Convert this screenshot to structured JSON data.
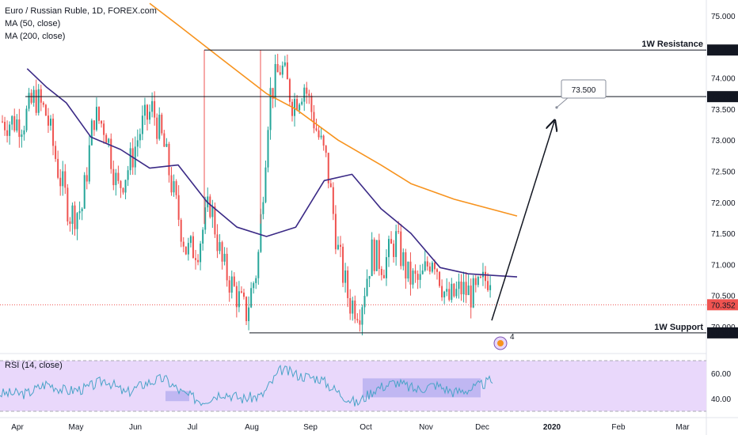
{
  "legend": {
    "title": "Euro / Russian Ruble, 1D, FOREX.com",
    "ma50": "MA (50, close)",
    "ma200": "MA (200, close)",
    "rsi": "RSI (14, close)"
  },
  "colors": {
    "up": "#26a69a",
    "down": "#ef5350",
    "ma50": "#3b2a86",
    "ma200": "#f7931e",
    "rsi": "#4aa3c8",
    "rsi_band": "#e9d8fb",
    "rsi_box": "#b8b2f0",
    "price_tag": "#ef5350",
    "level_tag": "#131722"
  },
  "chart_data": [
    {
      "type": "candlestick",
      "title": "Euro / Russian Ruble, 1D, FOREX.com",
      "ylim": [
        69.85,
        75.15
      ],
      "x_ticks": [
        "Apr",
        "May",
        "Jun",
        "Jul",
        "Aug",
        "Sep",
        "Oct",
        "Nov",
        "Dec",
        "2020",
        "Feb",
        "Mar"
      ],
      "y_ticks": [
        75.0,
        74.5,
        74.0,
        73.5,
        73.0,
        72.5,
        72.0,
        71.5,
        71.0,
        70.5,
        70.0
      ],
      "y_tick_labels": [
        "75.000",
        "74.500",
        "74.000",
        "73.500",
        "73.000",
        "72.500",
        "72.000",
        "71.500",
        "71.000",
        "70.500",
        "70.000"
      ],
      "price_series": {
        "anchors": [
          [
            "Apr",
            73.3
          ],
          [
            "Apr",
            73.7
          ],
          [
            "Apr",
            73.4
          ],
          [
            "Apr",
            72.5
          ],
          [
            "Apr",
            71.8
          ],
          [
            "May",
            71.9
          ],
          [
            "May",
            73.4
          ],
          [
            "May",
            73.2
          ],
          [
            "May",
            72.2
          ],
          [
            "May",
            72.6
          ],
          [
            "Jun",
            73.2
          ],
          [
            "Jun",
            73.5
          ],
          [
            "Jun",
            72.9
          ],
          [
            "Jun",
            72.0
          ],
          [
            "Jun",
            71.2
          ],
          [
            "Jul",
            71.3
          ],
          [
            "Jul",
            72.0
          ],
          [
            "Jul",
            71.0
          ],
          [
            "Jul",
            70.6
          ],
          [
            "Jul",
            70.2
          ],
          [
            "Aug",
            71.0
          ],
          [
            "Aug",
            73.7
          ],
          [
            "Aug",
            74.2
          ],
          [
            "Aug",
            73.6
          ],
          [
            "Aug",
            73.9
          ],
          [
            "Sep",
            73.2
          ],
          [
            "Sep",
            72.6
          ],
          [
            "Sep",
            71.2
          ],
          [
            "Sep",
            70.4
          ],
          [
            "Sep",
            70.3
          ],
          [
            "Oct",
            71.2
          ],
          [
            "Oct",
            71.0
          ],
          [
            "Oct",
            71.4
          ],
          [
            "Oct",
            70.8
          ],
          [
            "Oct",
            70.7
          ],
          [
            "Nov",
            71.2
          ],
          [
            "Nov",
            70.4
          ],
          [
            "Nov",
            70.6
          ],
          [
            "Nov",
            70.5
          ],
          [
            "Dec",
            71.1
          ],
          [
            "Dec",
            70.35
          ]
        ]
      },
      "ma50": [
        [
          "Apr",
          74.15
        ],
        [
          "Apr",
          73.85
        ],
        [
          "Apr",
          73.6
        ],
        [
          "May",
          73.05
        ],
        [
          "May",
          72.85
        ],
        [
          "Jun",
          72.55
        ],
        [
          "Jun",
          72.6
        ],
        [
          "Jul",
          72.0
        ],
        [
          "Jul",
          71.6
        ],
        [
          "Aug",
          71.45
        ],
        [
          "Aug",
          71.6
        ],
        [
          "Sep",
          72.35
        ],
        [
          "Sep",
          72.45
        ],
        [
          "Oct",
          71.9
        ],
        [
          "Oct",
          71.5
        ],
        [
          "Nov",
          70.95
        ],
        [
          "Nov",
          70.85
        ],
        [
          "Dec",
          70.8
        ]
      ],
      "ma200": [
        [
          "Jun",
          75.2
        ],
        [
          "Jun",
          74.85
        ],
        [
          "Jul",
          74.3
        ],
        [
          "Aug",
          73.75
        ],
        [
          "Aug",
          73.5
        ],
        [
          "Sep",
          73.0
        ],
        [
          "Oct",
          72.6
        ],
        [
          "Oct",
          72.3
        ],
        [
          "Nov",
          72.05
        ],
        [
          "Dec",
          71.78
        ]
      ],
      "levels": [
        {
          "name": "1W Resistance",
          "value": 74.45,
          "label": "74.450"
        },
        {
          "name": "1W Support",
          "value": 69.9,
          "label": "69.900"
        }
      ],
      "horizontal_line": {
        "value": 73.7,
        "label": "73.700"
      },
      "last_price": {
        "value": 70.352,
        "label": "70.352"
      },
      "projection": {
        "target": 73.5,
        "label": "73.500"
      },
      "event_badge": "4"
    },
    {
      "type": "line",
      "title": "RSI (14, close)",
      "ylim": [
        30,
        70
      ],
      "y_ticks": [
        60,
        40
      ],
      "y_tick_labels": [
        "60.00",
        "40.00"
      ],
      "band": [
        30,
        70
      ],
      "values_by_month": [
        [
          "Apr",
          44
        ],
        [
          "Apr",
          52
        ],
        [
          "Apr",
          46
        ],
        [
          "May",
          48
        ],
        [
          "May",
          55
        ],
        [
          "May",
          44
        ],
        [
          "Jun",
          52
        ],
        [
          "Jun",
          56
        ],
        [
          "Jun",
          44
        ],
        [
          "Jul",
          38
        ],
        [
          "Jul",
          45
        ],
        [
          "Jul",
          40
        ],
        [
          "Aug",
          42
        ],
        [
          "Aug",
          63
        ],
        [
          "Aug",
          58
        ],
        [
          "Sep",
          56
        ],
        [
          "Sep",
          45
        ],
        [
          "Sep",
          36
        ],
        [
          "Oct",
          48
        ],
        [
          "Oct",
          53
        ],
        [
          "Oct",
          47
        ],
        [
          "Nov",
          51
        ],
        [
          "Nov",
          45
        ],
        [
          "Nov",
          48
        ],
        [
          "Dec",
          57
        ],
        [
          "Dec",
          42
        ]
      ],
      "range_boxes": [
        {
          "from": "Jun",
          "to": "Jul",
          "low": 38,
          "high": 46
        },
        {
          "from": "Oct",
          "to": "Dec",
          "low": 41,
          "high": 56
        }
      ]
    }
  ]
}
